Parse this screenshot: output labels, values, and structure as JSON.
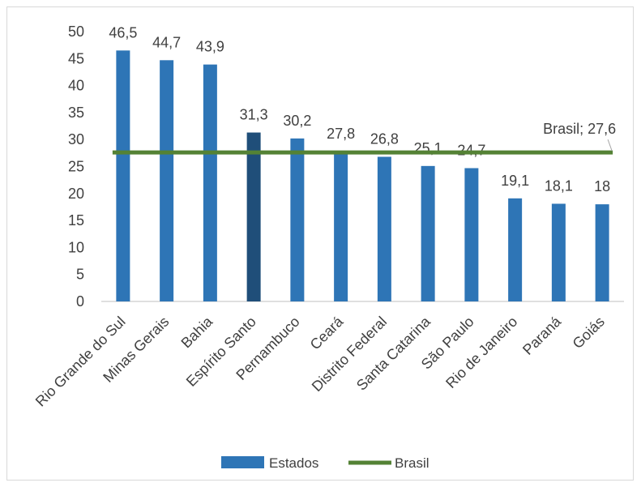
{
  "chart_data": {
    "type": "bar",
    "categories": [
      "Rio Grande do Sul",
      "Minas Gerais",
      "Bahia",
      "Espírito Santo",
      "Pernambuco",
      "Ceará",
      "Distrito Federal",
      "Santa Catarina",
      "São Paulo",
      "Rio de Janeiro",
      "Paraná",
      "Goiás"
    ],
    "series": [
      {
        "name": "Estados",
        "type": "bar",
        "values": [
          46.5,
          44.7,
          43.9,
          31.3,
          30.2,
          27.8,
          26.8,
          25.1,
          24.7,
          19.1,
          18.1,
          18
        ],
        "data_labels": [
          "46,5",
          "44,7",
          "43,9",
          "31,3",
          "30,2",
          "27,8",
          "26,8",
          "25,1",
          "24,7",
          "19,1",
          "18,1",
          "18"
        ]
      },
      {
        "name": "Brasil",
        "type": "line",
        "value": 27.6,
        "label": "Brasil; 27,6"
      }
    ],
    "highlight_category": "Espírito Santo",
    "ylim": [
      0,
      50
    ],
    "yticks": [
      "0",
      "5",
      "10",
      "15",
      "20",
      "25",
      "30",
      "35",
      "40",
      "45",
      "50"
    ],
    "ytick_values": [
      0,
      5,
      10,
      15,
      20,
      25,
      30,
      35,
      40,
      45,
      50
    ],
    "grid": false,
    "legend_position": "bottom",
    "title": "",
    "xlabel": "",
    "ylabel": "",
    "colors": {
      "bar": "#2e75b6",
      "bar_highlight": "#1f4e79",
      "line": "#548235",
      "axis": "#bfbfbf",
      "text": "#404040"
    }
  }
}
